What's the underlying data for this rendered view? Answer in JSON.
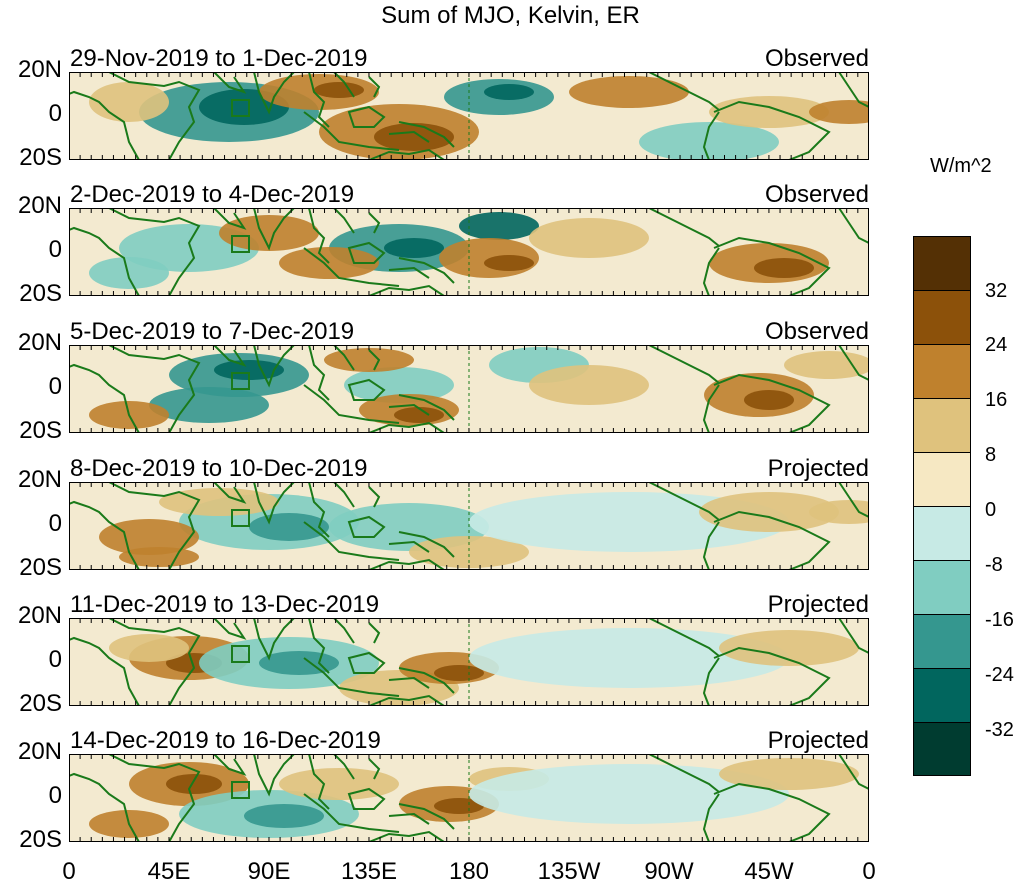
{
  "title": "Sum of MJO, Kelvin, ER",
  "lat_labels": [
    "20N",
    "0",
    "20S"
  ],
  "panels": [
    {
      "dates": "29-Nov-2019 to 1-Dec-2019",
      "kind": "Observed"
    },
    {
      "dates": "2-Dec-2019 to 4-Dec-2019",
      "kind": "Observed"
    },
    {
      "dates": "5-Dec-2019 to 7-Dec-2019",
      "kind": "Observed"
    },
    {
      "dates": "8-Dec-2019 to 10-Dec-2019",
      "kind": "Projected"
    },
    {
      "dates": "11-Dec-2019 to 13-Dec-2019",
      "kind": "Projected"
    },
    {
      "dates": "14-Dec-2019 to 16-Dec-2019",
      "kind": "Projected"
    }
  ],
  "lon_labels": [
    "0",
    "45E",
    "90E",
    "135E",
    "180",
    "135W",
    "90W",
    "45W",
    "0"
  ],
  "colorbar": {
    "units": "W/m^2",
    "labels": [
      "32",
      "24",
      "16",
      "8",
      "0",
      "-8",
      "-16",
      "-24",
      "-32"
    ],
    "colors": [
      "#543005",
      "#8c510a",
      "#bf812d",
      "#dfc27d",
      "#f6e8c3",
      "#c7eae5",
      "#80cdc1",
      "#35978f",
      "#01665e",
      "#003c30"
    ]
  },
  "colors": {
    "coast": "#1a7a1a",
    "background": "#ffffff"
  }
}
